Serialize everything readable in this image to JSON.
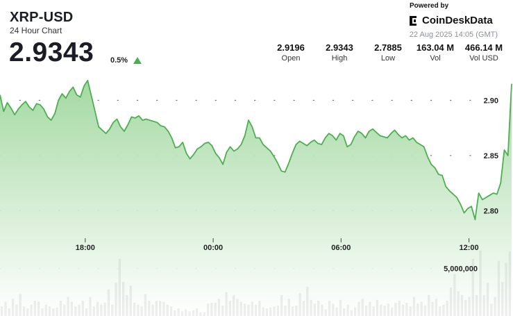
{
  "header": {
    "symbol": "XRP-USD",
    "subtitle": "24 Hour Chart",
    "price": "2.9343",
    "change": "0.5%",
    "change_direction": "up"
  },
  "branding": {
    "powered_by": "Powered by",
    "name": "CoinDeskData",
    "timestamp": "22 Aug 2025 14:05 (GMT)"
  },
  "stats": [
    {
      "value": "2.9196",
      "label": "Open"
    },
    {
      "value": "2.9343",
      "label": "High"
    },
    {
      "value": "2.7885",
      "label": "Low"
    },
    {
      "value": "163.04 M",
      "label": "Vol"
    },
    {
      "value": "466.14 M",
      "label": "Vol USD"
    }
  ],
  "colors": {
    "line": "#4caf50",
    "area_top": "#9fd79d",
    "volume": "#555555",
    "up_arrow": "#4caf50"
  },
  "chart_data": {
    "type": "area",
    "x_tick_labels": [
      "18:00",
      "00:00",
      "06:00",
      "12:00"
    ],
    "x_tick_hours": [
      4.0,
      10.0,
      16.0,
      22.0
    ],
    "x_range_hours": [
      0,
      24
    ],
    "ylim": [
      2.777,
      2.928
    ],
    "y_ticks": [
      2.8,
      2.85,
      2.9
    ],
    "y_tick_labels": [
      "2.80",
      "2.85",
      "2.90"
    ],
    "volume_tick_label": "5,000,000",
    "volume_tick_value": 5000000,
    "volume_max": 6800000,
    "grid": "dotted horizontal",
    "price": [
      2.905,
      2.89,
      2.898,
      2.893,
      2.887,
      2.892,
      2.896,
      2.899,
      2.894,
      2.891,
      2.897,
      2.896,
      2.892,
      2.885,
      2.882,
      2.888,
      2.9,
      2.906,
      2.902,
      2.908,
      2.912,
      2.905,
      2.903,
      2.913,
      2.918,
      2.904,
      2.89,
      2.876,
      2.873,
      2.87,
      2.874,
      2.88,
      2.883,
      2.876,
      2.872,
      2.878,
      2.885,
      2.884,
      2.886,
      2.882,
      2.883,
      2.882,
      2.881,
      2.88,
      2.877,
      2.876,
      2.872,
      2.866,
      2.857,
      2.858,
      2.862,
      2.852,
      2.847,
      2.851,
      2.856,
      2.858,
      2.861,
      2.862,
      2.859,
      2.852,
      2.848,
      2.842,
      2.853,
      2.858,
      2.854,
      2.856,
      2.86,
      2.868,
      2.882,
      2.876,
      2.866,
      2.866,
      2.86,
      2.857,
      2.854,
      2.849,
      2.843,
      2.836,
      2.835,
      2.843,
      2.852,
      2.86,
      2.863,
      2.861,
      2.859,
      2.862,
      2.864,
      2.861,
      2.86,
      2.866,
      2.87,
      2.868,
      2.864,
      2.87,
      2.868,
      2.858,
      2.86,
      2.867,
      2.872,
      2.87,
      2.866,
      2.872,
      2.874,
      2.871,
      2.868,
      2.867,
      2.866,
      2.87,
      2.873,
      2.869,
      2.866,
      2.868,
      2.864,
      2.866,
      2.862,
      2.86,
      2.858,
      2.849,
      2.842,
      2.839,
      2.833,
      2.832,
      2.822,
      2.818,
      2.815,
      2.812,
      2.806,
      2.798,
      2.802,
      2.804,
      2.792,
      2.816,
      2.81,
      2.812,
      2.814,
      2.816,
      2.815,
      2.825,
      2.855,
      2.85,
      2.915
    ],
    "volume": [
      1000000,
      1500000,
      800000,
      1800000,
      1200000,
      2300000,
      1000000,
      800000,
      1200000,
      1600000,
      1500000,
      800000,
      1200000,
      1000000,
      800000,
      900000,
      1600000,
      1200000,
      2000000,
      1500000,
      1000000,
      1200000,
      1600000,
      800000,
      2000000,
      1000000,
      1500000,
      1200000,
      1400000,
      2800000,
      1200000,
      3500000,
      6000000,
      3600000,
      2200000,
      3200000,
      1400000,
      1200000,
      1000000,
      2300000,
      1600000,
      1200000,
      1600000,
      1600000,
      1500000,
      1200000,
      1000000,
      600000,
      800000,
      500000,
      700000,
      500000,
      600000,
      800000,
      400000,
      400000,
      1300000,
      1400000,
      1400000,
      1800000,
      1100000,
      2500000,
      1600000,
      2200000,
      1800000,
      1500000,
      1300000,
      1200000,
      1500000,
      1200000,
      1600000,
      900000,
      800000,
      900000,
      1000000,
      1100000,
      2200000,
      1100000,
      1800000,
      1000000,
      1100000,
      2400000,
      1600000,
      3100000,
      1700000,
      1300000,
      1600000,
      1200000,
      700000,
      1600000,
      1300000,
      900000,
      1700000,
      800000,
      1200000,
      600000,
      900000,
      1500000,
      1800000,
      1100000,
      1500000,
      1000000,
      1700000,
      1200000,
      1100000,
      1300000,
      900000,
      1400000,
      1600000,
      1200000,
      1400000,
      1000000,
      2000000,
      1300000,
      1500000,
      1100000,
      2200000,
      1500000,
      1800000,
      1000000,
      1200000,
      1600000,
      3000000,
      4400000,
      2600000,
      2200000,
      1700000,
      2000000,
      6000000,
      2200000,
      6900000,
      2200000,
      3500000,
      1300000,
      2000000,
      5800000,
      3600000,
      5600000,
      6800000
    ]
  }
}
